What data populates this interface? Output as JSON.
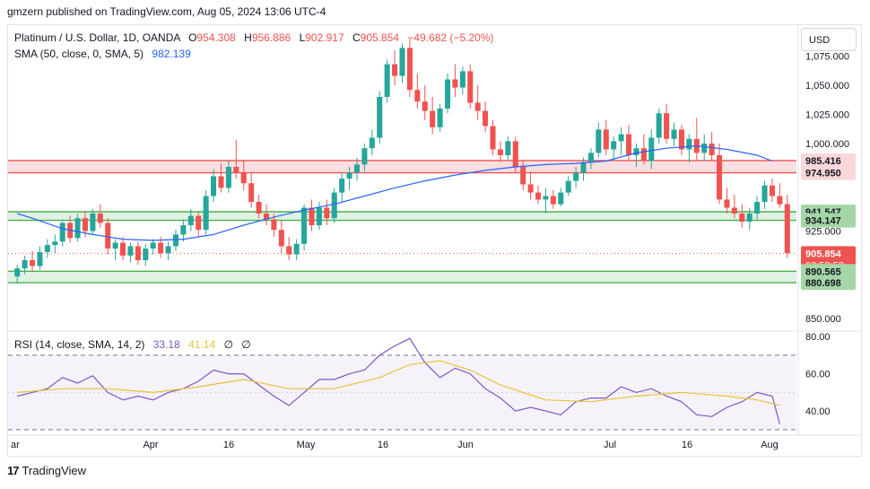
{
  "header": {
    "publish_line": "gmzern published on TradingView.com, Aug 05, 2024 13:06 UTC-4"
  },
  "legend": {
    "symbol": "Platinum / U.S. Dollar, 1D, OANDA",
    "open_label": "O",
    "open": "954.308",
    "high_label": "H",
    "high": "956.886",
    "low_label": "L",
    "low": "902.917",
    "close_label": "C",
    "close": "905.854",
    "change": "−49.682 (−5.20%)",
    "sma_label": "SMA (50, close, 0, SMA, 5)",
    "sma_value": "982.139",
    "rsi_label": "RSI (14, close, SMA, 14, 2)",
    "rsi_value": "33.18",
    "rsi_sma_value": "41.14",
    "rsi_extra1": "∅",
    "rsi_extra2": "∅"
  },
  "currency_button": "USD",
  "footer": {
    "brand": "TradingView"
  },
  "colors": {
    "up": "#26a69a",
    "down": "#ef5350",
    "sma": "#2962ff",
    "rsi": "#7e57c2",
    "rsi_sma": "#e8c33a",
    "resistance_zone": "#f8d7d9",
    "support_zone": "#d8efd9"
  },
  "chart_data": {
    "type": "candlestick",
    "y_ticks": [
      "1,075.000",
      "1,050.000",
      "1,025.000",
      "1,000.000",
      "925.000",
      "850.000"
    ],
    "y_range": [
      840,
      1100
    ],
    "x_labels": [
      "ar",
      "Apr",
      "16",
      "May",
      "16",
      "Jun",
      "Jul",
      "16",
      "Aug"
    ],
    "price_labels": [
      {
        "text": "985.416",
        "value": 985.416,
        "kind": "resistance"
      },
      {
        "text": "974.950",
        "value": 974.95,
        "kind": "resistance"
      },
      {
        "text": "941.547",
        "value": 941.547,
        "kind": "support"
      },
      {
        "text": "934.147",
        "value": 934.147,
        "kind": "support"
      },
      {
        "text": "905.854",
        "value": 905.854,
        "kind": "current",
        "sub": "03:53:52"
      },
      {
        "text": "890.565",
        "value": 890.565,
        "kind": "support"
      },
      {
        "text": "880.698",
        "value": 880.698,
        "kind": "support"
      }
    ],
    "zones": [
      {
        "from": 974.95,
        "to": 985.416,
        "kind": "resistance"
      },
      {
        "from": 934.147,
        "to": 941.547,
        "kind": "support"
      },
      {
        "from": 880.698,
        "to": 890.565,
        "kind": "support"
      }
    ],
    "rsi_ticks": [
      "80.00",
      "60.00",
      "40.00"
    ],
    "rsi_range": [
      28,
      82
    ],
    "rsi_bands": [
      70,
      30
    ],
    "candles": [
      [
        886,
        896,
        880,
        893
      ],
      [
        893,
        904,
        888,
        900
      ],
      [
        900,
        908,
        890,
        895
      ],
      [
        895,
        912,
        892,
        907
      ],
      [
        907,
        918,
        902,
        913
      ],
      [
        913,
        922,
        906,
        916
      ],
      [
        916,
        935,
        912,
        932
      ],
      [
        932,
        938,
        915,
        919
      ],
      [
        919,
        940,
        916,
        936
      ],
      [
        936,
        942,
        920,
        925
      ],
      [
        925,
        944,
        922,
        940
      ],
      [
        940,
        948,
        928,
        932
      ],
      [
        932,
        936,
        905,
        910
      ],
      [
        910,
        918,
        900,
        915
      ],
      [
        915,
        920,
        900,
        904
      ],
      [
        904,
        915,
        898,
        912
      ],
      [
        912,
        916,
        896,
        900
      ],
      [
        900,
        914,
        895,
        910
      ],
      [
        910,
        918,
        905,
        915
      ],
      [
        915,
        920,
        902,
        906
      ],
      [
        906,
        916,
        900,
        912
      ],
      [
        912,
        926,
        908,
        922
      ],
      [
        922,
        935,
        916,
        930
      ],
      [
        930,
        944,
        925,
        938
      ],
      [
        938,
        942,
        920,
        926
      ],
      [
        926,
        960,
        922,
        955
      ],
      [
        955,
        978,
        950,
        972
      ],
      [
        972,
        983,
        958,
        962
      ],
      [
        962,
        985,
        958,
        980
      ],
      [
        980,
        1003,
        970,
        975
      ],
      [
        975,
        985,
        960,
        966
      ],
      [
        966,
        975,
        945,
        950
      ],
      [
        950,
        956,
        936,
        940
      ],
      [
        940,
        948,
        930,
        935
      ],
      [
        935,
        940,
        920,
        926
      ],
      [
        926,
        934,
        906,
        912
      ],
      [
        912,
        920,
        900,
        905
      ],
      [
        905,
        918,
        900,
        914
      ],
      [
        914,
        948,
        908,
        945
      ],
      [
        945,
        952,
        925,
        930
      ],
      [
        930,
        950,
        926,
        945
      ],
      [
        945,
        952,
        930,
        936
      ],
      [
        936,
        962,
        932,
        958
      ],
      [
        958,
        975,
        950,
        970
      ],
      [
        970,
        980,
        960,
        975
      ],
      [
        975,
        988,
        968,
        982
      ],
      [
        982,
        1000,
        976,
        996
      ],
      [
        996,
        1012,
        990,
        1005
      ],
      [
        1005,
        1045,
        1000,
        1040
      ],
      [
        1040,
        1072,
        1035,
        1068
      ],
      [
        1068,
        1080,
        1050,
        1058
      ],
      [
        1058,
        1086,
        1052,
        1082
      ],
      [
        1082,
        1090,
        1040,
        1046
      ],
      [
        1046,
        1060,
        1030,
        1036
      ],
      [
        1036,
        1050,
        1020,
        1028
      ],
      [
        1028,
        1040,
        1008,
        1014
      ],
      [
        1014,
        1034,
        1010,
        1030
      ],
      [
        1030,
        1060,
        1026,
        1055
      ],
      [
        1055,
        1068,
        1040,
        1048
      ],
      [
        1048,
        1066,
        1042,
        1062
      ],
      [
        1062,
        1068,
        1030,
        1035
      ],
      [
        1035,
        1050,
        1020,
        1028
      ],
      [
        1028,
        1036,
        1010,
        1015
      ],
      [
        1015,
        1020,
        990,
        995
      ],
      [
        995,
        1002,
        984,
        990
      ],
      [
        990,
        1006,
        986,
        1002
      ],
      [
        1002,
        1006,
        975,
        980
      ],
      [
        980,
        986,
        960,
        965
      ],
      [
        965,
        976,
        952,
        958
      ],
      [
        958,
        964,
        948,
        952
      ],
      [
        952,
        962,
        940,
        955
      ],
      [
        955,
        960,
        944,
        948
      ],
      [
        948,
        962,
        946,
        958
      ],
      [
        958,
        972,
        955,
        968
      ],
      [
        968,
        980,
        962,
        975
      ],
      [
        975,
        988,
        968,
        984
      ],
      [
        984,
        996,
        978,
        992
      ],
      [
        992,
        1018,
        988,
        1012
      ],
      [
        1012,
        1020,
        990,
        995
      ],
      [
        995,
        1006,
        985,
        1002
      ],
      [
        1002,
        1014,
        990,
        1008
      ],
      [
        1008,
        1016,
        986,
        990
      ],
      [
        990,
        1000,
        980,
        996
      ],
      [
        996,
        1008,
        982,
        985
      ],
      [
        985,
        1012,
        978,
        1005
      ],
      [
        1005,
        1030,
        1000,
        1026
      ],
      [
        1026,
        1034,
        1000,
        1004
      ],
      [
        1004,
        1018,
        998,
        1012
      ],
      [
        1012,
        1016,
        990,
        995
      ],
      [
        995,
        1008,
        984,
        1004
      ],
      [
        1004,
        1022,
        985,
        992
      ],
      [
        992,
        1008,
        985,
        1000
      ],
      [
        1000,
        1010,
        985,
        990
      ],
      [
        990,
        1000,
        948,
        952
      ],
      [
        952,
        962,
        940,
        945
      ],
      [
        945,
        956,
        936,
        940
      ],
      [
        940,
        948,
        928,
        933
      ],
      [
        933,
        945,
        926,
        940
      ],
      [
        940,
        955,
        935,
        950
      ],
      [
        950,
        968,
        944,
        964
      ],
      [
        964,
        970,
        950,
        955
      ],
      [
        955,
        966,
        945,
        948
      ],
      [
        948,
        956,
        902,
        906
      ]
    ],
    "sma": [
      [
        0,
        940
      ],
      [
        2,
        936
      ],
      [
        6,
        927
      ],
      [
        10,
        922
      ],
      [
        14,
        918
      ],
      [
        18,
        917
      ],
      [
        22,
        918
      ],
      [
        26,
        922
      ],
      [
        30,
        930
      ],
      [
        34,
        937
      ],
      [
        38,
        943
      ],
      [
        42,
        948
      ],
      [
        46,
        955
      ],
      [
        50,
        962
      ],
      [
        54,
        968
      ],
      [
        58,
        973
      ],
      [
        62,
        977
      ],
      [
        66,
        980
      ],
      [
        70,
        982
      ],
      [
        74,
        983
      ],
      [
        78,
        985
      ],
      [
        82,
        992
      ],
      [
        86,
        996
      ],
      [
        90,
        998
      ],
      [
        94,
        995
      ],
      [
        98,
        990
      ],
      [
        100,
        985
      ]
    ],
    "rsi": [
      [
        0,
        48
      ],
      [
        2,
        50
      ],
      [
        4,
        52
      ],
      [
        6,
        58
      ],
      [
        8,
        55
      ],
      [
        10,
        59
      ],
      [
        12,
        50
      ],
      [
        14,
        46
      ],
      [
        16,
        48
      ],
      [
        18,
        46
      ],
      [
        20,
        50
      ],
      [
        22,
        52
      ],
      [
        24,
        56
      ],
      [
        26,
        62
      ],
      [
        28,
        60
      ],
      [
        30,
        60
      ],
      [
        32,
        54
      ],
      [
        34,
        48
      ],
      [
        36,
        43
      ],
      [
        38,
        50
      ],
      [
        40,
        57
      ],
      [
        42,
        57
      ],
      [
        44,
        60
      ],
      [
        46,
        62
      ],
      [
        48,
        70
      ],
      [
        50,
        75
      ],
      [
        52,
        79
      ],
      [
        54,
        66
      ],
      [
        56,
        58
      ],
      [
        58,
        63
      ],
      [
        60,
        60
      ],
      [
        62,
        52
      ],
      [
        64,
        47
      ],
      [
        66,
        40
      ],
      [
        68,
        42
      ],
      [
        70,
        40
      ],
      [
        72,
        38
      ],
      [
        74,
        45
      ],
      [
        76,
        47
      ],
      [
        78,
        47
      ],
      [
        80,
        53
      ],
      [
        82,
        50
      ],
      [
        84,
        52
      ],
      [
        86,
        48
      ],
      [
        88,
        45
      ],
      [
        90,
        38
      ],
      [
        92,
        37
      ],
      [
        94,
        42
      ],
      [
        96,
        45
      ],
      [
        98,
        50
      ],
      [
        100,
        48
      ],
      [
        101,
        33
      ]
    ],
    "rsi_sma": [
      [
        0,
        50
      ],
      [
        6,
        52
      ],
      [
        12,
        52
      ],
      [
        18,
        50
      ],
      [
        24,
        53
      ],
      [
        30,
        57
      ],
      [
        36,
        52
      ],
      [
        42,
        52
      ],
      [
        48,
        58
      ],
      [
        52,
        65
      ],
      [
        56,
        67
      ],
      [
        60,
        62
      ],
      [
        64,
        54
      ],
      [
        70,
        46
      ],
      [
        76,
        45
      ],
      [
        82,
        48
      ],
      [
        88,
        50
      ],
      [
        94,
        48
      ],
      [
        98,
        46
      ],
      [
        101,
        43
      ]
    ]
  }
}
